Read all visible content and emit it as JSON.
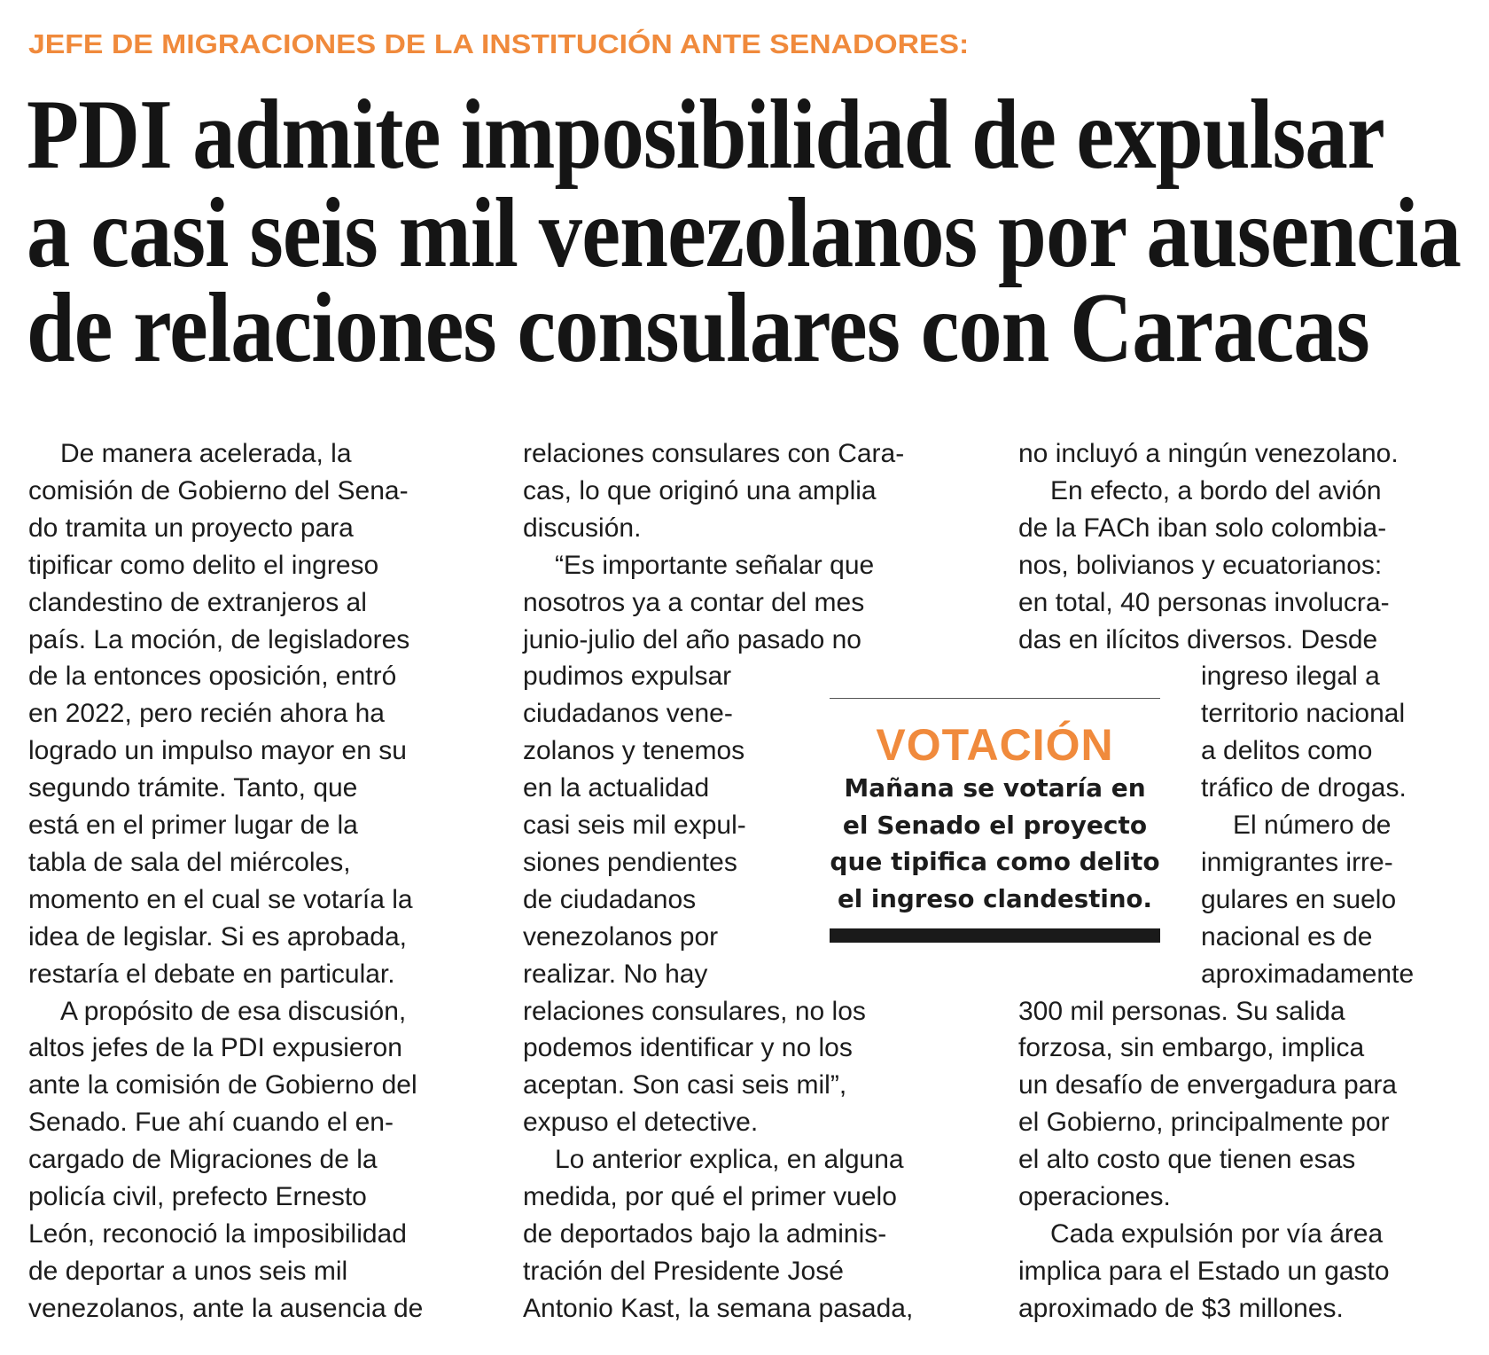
{
  "kicker": "JEFE DE MIGRACIONES DE LA INSTITUCIÓN ANTE SENADORES:",
  "headline": [
    "PDI admite imposibilidad de expulsar",
    "a casi seis mil venezolanos por ausencia",
    "de relaciones consulares con Caracas"
  ],
  "columns": [
    {
      "lines": [
        {
          "t": "De manera acelerada, la",
          "indent": true
        },
        {
          "t": "comisión de Gobierno del Sena-"
        },
        {
          "t": "do tramita un proyecto para"
        },
        {
          "t": "tipificar como delito el ingreso"
        },
        {
          "t": "clandestino de extranjeros al"
        },
        {
          "t": "país. La moción, de legisladores"
        },
        {
          "t": "de la entonces oposición, entró"
        },
        {
          "t": "en 2022, pero recién ahora ha"
        },
        {
          "t": "logrado un impulso mayor en su"
        },
        {
          "t": "segundo trámite. Tanto, que"
        },
        {
          "t": "está en el primer lugar de la"
        },
        {
          "t": "tabla de sala del miércoles,"
        },
        {
          "t": "momento en el cual se votaría la"
        },
        {
          "t": "idea de legislar. Si es aprobada,"
        },
        {
          "t": "restaría el debate en particular."
        },
        {
          "t": "A propósito de esa discusión,",
          "indent": true
        },
        {
          "t": "altos jefes de la PDI expusieron"
        },
        {
          "t": "ante la comisión de Gobierno del"
        },
        {
          "t": "Senado. Fue ahí cuando el en-"
        },
        {
          "t": "cargado de Migraciones de la"
        },
        {
          "t": "policía civil, prefecto Ernesto"
        },
        {
          "t": "León, reconoció la imposibilidad"
        },
        {
          "t": "de deportar a unos seis mil"
        },
        {
          "t": "venezolanos, ante la ausencia de"
        }
      ]
    },
    {
      "lines": [
        {
          "t": "relaciones consulares con Cara-"
        },
        {
          "t": "cas, lo que originó una amplia"
        },
        {
          "t": "discusión."
        },
        {
          "t": "“Es importante señalar que",
          "indent": true
        },
        {
          "t": "nosotros ya a contar del mes"
        },
        {
          "t": "junio-julio del año pasado no"
        },
        {
          "t": "pudimos expulsar",
          "narrow": true
        },
        {
          "t": "ciudadanos vene-",
          "narrow": true
        },
        {
          "t": "zolanos y tenemos",
          "narrow": true
        },
        {
          "t": "en la actualidad",
          "narrow": true
        },
        {
          "t": "casi seis mil expul-",
          "narrow": true
        },
        {
          "t": "siones pendientes",
          "narrow": true
        },
        {
          "t": "de ciudadanos",
          "narrow": true
        },
        {
          "t": "venezolanos por",
          "narrow": true
        },
        {
          "t": "realizar. No hay",
          "narrow": true
        },
        {
          "t": "relaciones consulares, no los"
        },
        {
          "t": "podemos identificar y no los"
        },
        {
          "t": "aceptan. Son casi seis mil”,"
        },
        {
          "t": "expuso el detective."
        },
        {
          "t": "Lo anterior explica, en alguna",
          "indent": true
        },
        {
          "t": "medida, por qué el primer vuelo"
        },
        {
          "t": "de deportados bajo la adminis-"
        },
        {
          "t": "tración del Presidente José"
        },
        {
          "t": "Antonio Kast, la semana pasada,"
        }
      ]
    },
    {
      "lines": [
        {
          "t": "no incluyó a ningún venezolano."
        },
        {
          "t": "En efecto, a bordo del avión",
          "indent": true
        },
        {
          "t": "de la FACh iban solo colombia-"
        },
        {
          "t": "nos, bolivianos y ecuatorianos:"
        },
        {
          "t": "en total, 40 personas involucra-"
        },
        {
          "t": "das en ilícitos diversos. Desde"
        },
        {
          "t": "ingreso ilegal a",
          "narrow": true
        },
        {
          "t": "territorio nacional",
          "narrow": true
        },
        {
          "t": "a delitos como",
          "narrow": true
        },
        {
          "t": "tráfico de drogas.",
          "narrow": true
        },
        {
          "t": "El número de",
          "narrow": true,
          "indent": true
        },
        {
          "t": "inmigrantes irre-",
          "narrow": true
        },
        {
          "t": "gulares en suelo",
          "narrow": true
        },
        {
          "t": "nacional es de",
          "narrow": true
        },
        {
          "t": "aproximadamente",
          "narrow": true
        },
        {
          "t": "300 mil personas. Su salida"
        },
        {
          "t": "forzosa, sin embargo, implica"
        },
        {
          "t": "un desafío de envergadura para"
        },
        {
          "t": "el Gobierno, principalmente por"
        },
        {
          "t": "el alto costo que tienen esas"
        },
        {
          "t": "operaciones."
        },
        {
          "t": "Cada expulsión por vía área",
          "indent": true
        },
        {
          "t": "implica para el Estado un gasto"
        },
        {
          "t": "aproximado de $3 millones."
        }
      ]
    }
  ],
  "sidebar": {
    "title": "VOTACIÓN",
    "text": [
      "Mañana se votaría en",
      "el Senado el proyecto",
      "que tipifica como delito",
      "el ingreso clandestino."
    ]
  },
  "colors": {
    "accent": "#f08a3c",
    "text": "#1a1a1a"
  }
}
